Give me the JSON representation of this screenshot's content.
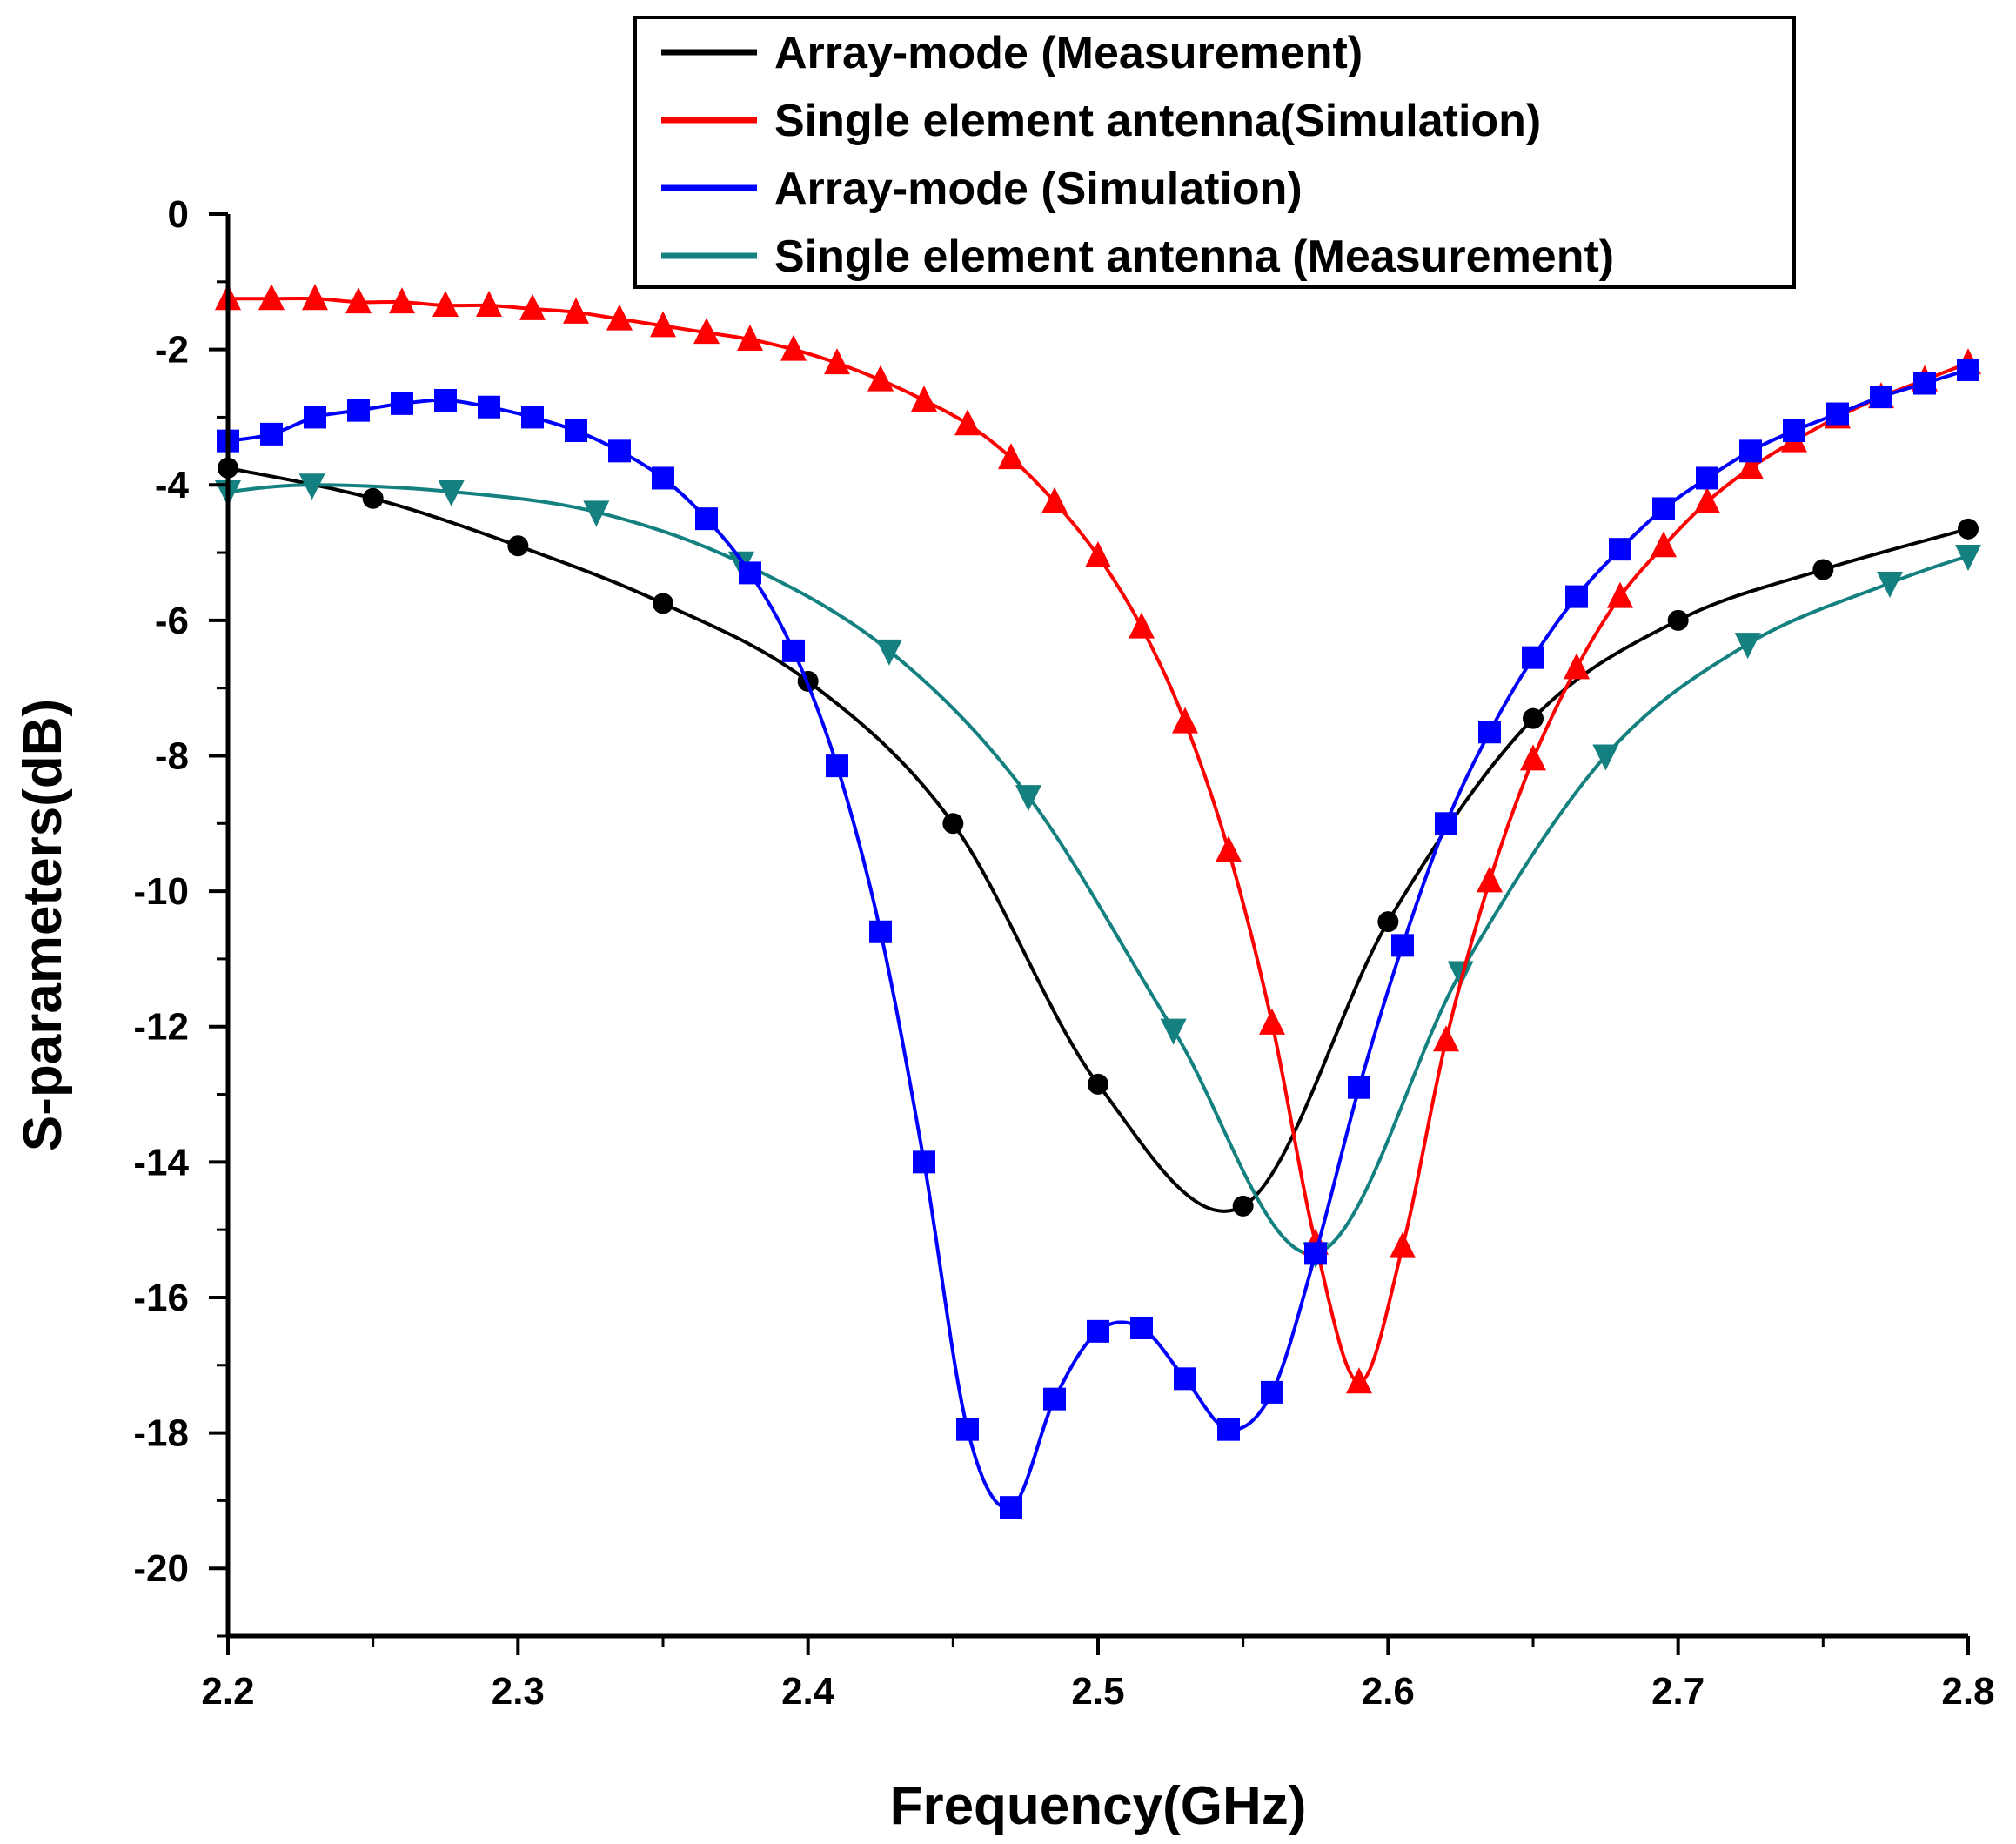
{
  "chart_data": {
    "type": "line",
    "xlabel": "Frequency(GHz)",
    "ylabel": "S-parameters(dB)",
    "xlim": [
      2.2,
      2.8
    ],
    "ylim": [
      -21,
      0
    ],
    "xticks": [
      "2.2",
      "2.3",
      "2.4",
      "2.5",
      "2.6",
      "2.7",
      "2.8"
    ],
    "xtick_values": [
      2.2,
      2.3,
      2.4,
      2.5,
      2.6,
      2.7,
      2.8
    ],
    "yticks": [
      "0",
      "-2",
      "-4",
      "-6",
      "-8",
      "-10",
      "-12",
      "-14",
      "-16",
      "-18",
      "-20"
    ],
    "ytick_values": [
      0,
      -2,
      -4,
      -6,
      -8,
      -10,
      -12,
      -14,
      -16,
      -18,
      -20
    ],
    "legend_position": "top-right",
    "series": [
      {
        "name": "Array-mode (Measurement)",
        "color": "#000000",
        "marker": "circle",
        "x": [
          2.2,
          2.25,
          2.3,
          2.35,
          2.4,
          2.45,
          2.5,
          2.55,
          2.6,
          2.65,
          2.7,
          2.75,
          2.8
        ],
        "y": [
          -3.75,
          -4.2,
          -4.9,
          -5.75,
          -6.9,
          -9.0,
          -12.85,
          -14.65,
          -10.45,
          -7.45,
          -6.0,
          -5.25,
          -4.65
        ]
      },
      {
        "name": "Single element antenna(Simulation)",
        "color": "#ff0000",
        "marker": "triangle-up",
        "x": [
          2.2,
          2.215,
          2.23,
          2.245,
          2.26,
          2.275,
          2.29,
          2.305,
          2.32,
          2.335,
          2.35,
          2.365,
          2.38,
          2.395,
          2.41,
          2.425,
          2.44,
          2.455,
          2.47,
          2.485,
          2.5,
          2.515,
          2.53,
          2.545,
          2.56,
          2.575,
          2.59,
          2.605,
          2.62,
          2.635,
          2.65,
          2.665,
          2.68,
          2.695,
          2.71,
          2.725,
          2.74,
          2.755,
          2.77,
          2.785,
          2.8
        ],
        "y": [
          -1.25,
          -1.25,
          -1.25,
          -1.3,
          -1.3,
          -1.35,
          -1.35,
          -1.4,
          -1.45,
          -1.55,
          -1.65,
          -1.75,
          -1.85,
          -2.0,
          -2.2,
          -2.45,
          -2.75,
          -3.1,
          -3.6,
          -4.25,
          -5.05,
          -6.1,
          -7.5,
          -9.4,
          -11.95,
          -15.2,
          -17.25,
          -15.25,
          -12.2,
          -9.85,
          -8.05,
          -6.7,
          -5.65,
          -4.9,
          -4.25,
          -3.75,
          -3.35,
          -3.0,
          -2.7,
          -2.45,
          -2.2
        ]
      },
      {
        "name": "Array-mode (Simulation)",
        "color": "#0000ff",
        "marker": "square",
        "x": [
          2.2,
          2.215,
          2.23,
          2.245,
          2.26,
          2.275,
          2.29,
          2.305,
          2.32,
          2.335,
          2.35,
          2.365,
          2.38,
          2.395,
          2.41,
          2.425,
          2.44,
          2.455,
          2.47,
          2.485,
          2.5,
          2.515,
          2.53,
          2.545,
          2.56,
          2.575,
          2.59,
          2.605,
          2.62,
          2.635,
          2.65,
          2.665,
          2.68,
          2.695,
          2.71,
          2.725,
          2.74,
          2.755,
          2.77,
          2.785,
          2.8
        ],
        "y": [
          -3.35,
          -3.25,
          -3.0,
          -2.9,
          -2.8,
          -2.75,
          -2.85,
          -3.0,
          -3.2,
          -3.5,
          -3.9,
          -4.5,
          -5.3,
          -6.45,
          -8.15,
          -10.6,
          -14.0,
          -17.95,
          -19.1,
          -17.5,
          -16.5,
          -16.45,
          -17.2,
          -17.95,
          -17.4,
          -15.35,
          -12.9,
          -10.8,
          -9.0,
          -7.65,
          -6.55,
          -5.65,
          -4.95,
          -4.35,
          -3.9,
          -3.5,
          -3.2,
          -2.95,
          -2.7,
          -2.5,
          -2.3
        ]
      },
      {
        "name": "Single element antenna (Measurement)",
        "color": "#148080",
        "marker": "triangle-down",
        "x": [
          2.2,
          2.229,
          2.277,
          2.327,
          2.377,
          2.428,
          2.476,
          2.526,
          2.575,
          2.625,
          2.675,
          2.724,
          2.773,
          2.8
        ],
        "y": [
          -4.1,
          -4.0,
          -4.1,
          -4.4,
          -5.15,
          -6.45,
          -8.6,
          -12.05,
          -15.35,
          -11.2,
          -8.0,
          -6.35,
          -5.45,
          -5.05
        ]
      }
    ]
  }
}
